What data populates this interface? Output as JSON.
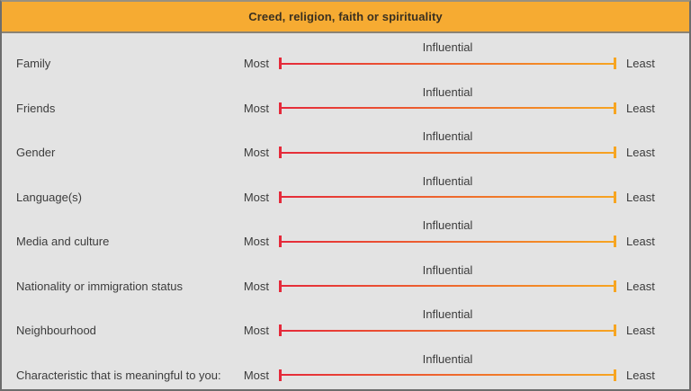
{
  "panel": {
    "title": "Creed, religion, faith or spirituality"
  },
  "scale": {
    "most": "Most",
    "least": "Least",
    "influential": "Influential"
  },
  "rows": [
    {
      "label": "Family"
    },
    {
      "label": "Friends"
    },
    {
      "label": "Gender"
    },
    {
      "label": "Language(s)"
    },
    {
      "label": "Media and culture"
    },
    {
      "label": "Nationality or immigration status"
    },
    {
      "label": "Neighbourhood"
    },
    {
      "label": "Characteristic that is meaningful to you:"
    }
  ],
  "colors": {
    "header_bg": "#f6ab32",
    "header_text": "#3a3020",
    "body_bg": "#e3e3e3",
    "text": "#3c3c3c",
    "slider_start": "#e5293a",
    "slider_end": "#f7a521",
    "border": "#6d6d6d",
    "header_divider": "#8b8374"
  }
}
